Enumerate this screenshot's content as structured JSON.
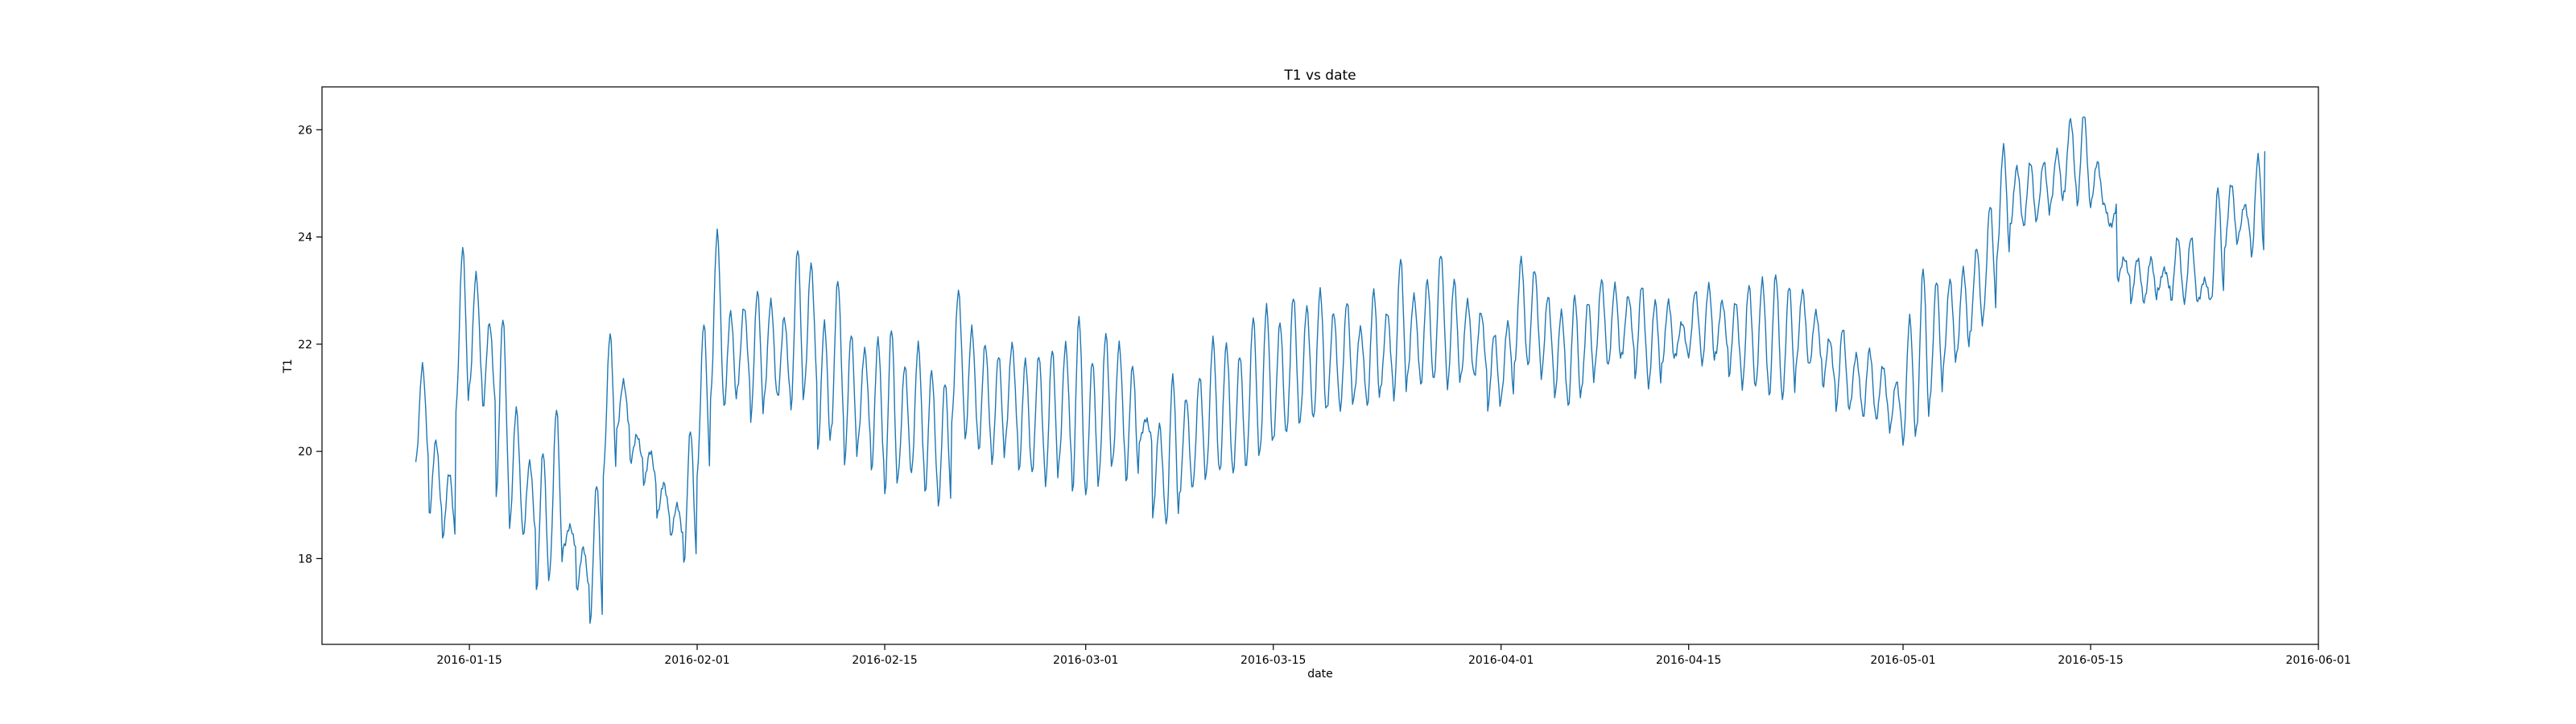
{
  "chart_data": {
    "type": "line",
    "title": "T1 vs date",
    "xlabel": "date",
    "ylabel": "T1",
    "xlim": [
      "2016-01-04",
      "2016-06-01"
    ],
    "ylim": [
      16.4,
      26.8
    ],
    "xticks": [
      "2016-01-15",
      "2016-02-01",
      "2016-02-15",
      "2016-03-01",
      "2016-03-15",
      "2016-04-01",
      "2016-04-15",
      "2016-05-01",
      "2016-05-15",
      "2016-06-01"
    ],
    "yticks": [
      18,
      20,
      22,
      24,
      26
    ],
    "grid": false,
    "legend": false,
    "line_color": "#1f77b4",
    "series": [
      {
        "x": [
          "2016-01-11",
          "2016-01-12",
          "2016-01-13",
          "2016-01-14",
          "2016-01-15",
          "2016-01-16",
          "2016-01-17",
          "2016-01-18",
          "2016-01-19",
          "2016-01-20",
          "2016-01-21",
          "2016-01-22",
          "2016-01-23",
          "2016-01-24",
          "2016-01-25",
          "2016-01-26",
          "2016-01-27",
          "2016-01-28",
          "2016-01-29",
          "2016-01-30",
          "2016-01-31",
          "2016-02-01",
          "2016-02-02",
          "2016-02-03",
          "2016-02-04",
          "2016-02-05",
          "2016-02-06",
          "2016-02-07",
          "2016-02-08",
          "2016-02-09",
          "2016-02-10",
          "2016-02-11",
          "2016-02-12",
          "2016-02-13",
          "2016-02-14",
          "2016-02-15",
          "2016-02-16",
          "2016-02-17",
          "2016-02-18",
          "2016-02-19",
          "2016-02-20",
          "2016-02-21",
          "2016-02-22",
          "2016-02-23",
          "2016-02-24",
          "2016-02-25",
          "2016-02-26",
          "2016-02-27",
          "2016-02-28",
          "2016-02-29",
          "2016-03-01",
          "2016-03-02",
          "2016-03-03",
          "2016-03-04",
          "2016-03-05",
          "2016-03-06",
          "2016-03-07",
          "2016-03-08",
          "2016-03-09",
          "2016-03-10",
          "2016-03-11",
          "2016-03-12",
          "2016-03-13",
          "2016-03-14",
          "2016-03-15",
          "2016-03-16",
          "2016-03-17",
          "2016-03-18",
          "2016-03-19",
          "2016-03-20",
          "2016-03-21",
          "2016-03-22",
          "2016-03-23",
          "2016-03-24",
          "2016-03-25",
          "2016-03-26",
          "2016-03-27",
          "2016-03-28",
          "2016-03-29",
          "2016-03-30",
          "2016-03-31",
          "2016-04-01",
          "2016-04-02",
          "2016-04-03",
          "2016-04-04",
          "2016-04-05",
          "2016-04-06",
          "2016-04-07",
          "2016-04-08",
          "2016-04-09",
          "2016-04-10",
          "2016-04-11",
          "2016-04-12",
          "2016-04-13",
          "2016-04-14",
          "2016-04-15",
          "2016-04-16",
          "2016-04-17",
          "2016-04-18",
          "2016-04-19",
          "2016-04-20",
          "2016-04-21",
          "2016-04-22",
          "2016-04-23",
          "2016-04-24",
          "2016-04-25",
          "2016-04-26",
          "2016-04-27",
          "2016-04-28",
          "2016-04-29",
          "2016-04-30",
          "2016-05-01",
          "2016-05-02",
          "2016-05-03",
          "2016-05-04",
          "2016-05-05",
          "2016-05-06",
          "2016-05-07",
          "2016-05-08",
          "2016-05-09",
          "2016-05-10",
          "2016-05-11",
          "2016-05-12",
          "2016-05-13",
          "2016-05-14",
          "2016-05-15",
          "2016-05-16",
          "2016-05-17",
          "2016-05-18",
          "2016-05-19",
          "2016-05-20",
          "2016-05-21",
          "2016-05-22",
          "2016-05-23",
          "2016-05-24",
          "2016-05-25",
          "2016-05-26",
          "2016-05-27"
        ],
        "daily_min": [
          19.8,
          18.8,
          18.4,
          20.8,
          21.2,
          20.8,
          19.2,
          18.6,
          18.4,
          17.4,
          17.8,
          18.2,
          17.4,
          16.8,
          19.6,
          20.4,
          19.8,
          19.4,
          18.8,
          18.4,
          17.9,
          19.6,
          21.0,
          20.8,
          21.2,
          20.6,
          21.0,
          21.0,
          20.8,
          21.2,
          20.0,
          20.4,
          19.8,
          20.2,
          19.6,
          19.2,
          19.6,
          19.6,
          19.2,
          19.0,
          20.6,
          20.2,
          20.0,
          19.8,
          20.2,
          19.6,
          19.6,
          19.4,
          19.8,
          19.2,
          19.2,
          19.6,
          19.8,
          19.4,
          20.2,
          18.8,
          18.6,
          19.2,
          19.4,
          19.6,
          19.6,
          19.6,
          19.8,
          20.0,
          20.2,
          20.4,
          20.6,
          20.6,
          20.8,
          20.8,
          21.0,
          20.8,
          21.2,
          21.0,
          21.4,
          21.2,
          21.4,
          21.2,
          21.4,
          21.4,
          20.8,
          21.0,
          21.6,
          21.6,
          21.4,
          21.0,
          20.8,
          21.2,
          21.6,
          21.6,
          21.8,
          21.4,
          21.2,
          21.6,
          21.8,
          21.8,
          21.6,
          21.8,
          21.4,
          21.2,
          21.2,
          21.0,
          21.0,
          21.6,
          21.6,
          21.2,
          20.8,
          20.8,
          20.6,
          20.6,
          20.4,
          20.1,
          20.4,
          21.0,
          21.6,
          21.8,
          22.2,
          22.6,
          23.6,
          24.2,
          24.2,
          24.4,
          24.6,
          24.8,
          24.6,
          24.6,
          24.6,
          23.2,
          22.8,
          22.8,
          23.0,
          22.8,
          22.8,
          22.8,
          22.8,
          23.8,
          24.0,
          23.6
        ],
        "daily_max": [
          21.6,
          20.2,
          19.6,
          23.8,
          23.3,
          22.4,
          22.5,
          20.8,
          19.8,
          20.0,
          20.8,
          18.6,
          18.2,
          19.4,
          22.2,
          21.3,
          20.3,
          20.0,
          19.4,
          19.0,
          20.4,
          22.4,
          24.1,
          22.6,
          22.7,
          23.0,
          22.8,
          22.5,
          23.8,
          23.5,
          22.4,
          23.2,
          22.2,
          21.9,
          22.1,
          22.3,
          21.6,
          22.0,
          21.5,
          21.3,
          23.0,
          22.3,
          22.0,
          21.8,
          22.0,
          21.7,
          21.8,
          21.9,
          22.0,
          22.5,
          21.7,
          22.2,
          22.0,
          21.6,
          20.6,
          20.5,
          21.4,
          21.0,
          21.4,
          22.1,
          22.0,
          21.8,
          22.5,
          22.7,
          22.4,
          22.9,
          22.7,
          23.0,
          22.6,
          22.8,
          22.3,
          23.0,
          22.6,
          23.6,
          22.9,
          23.2,
          23.7,
          23.2,
          22.8,
          22.6,
          22.2,
          22.4,
          23.6,
          23.4,
          22.9,
          22.6,
          22.9,
          22.8,
          23.2,
          23.1,
          22.9,
          23.1,
          22.8,
          22.8,
          22.4,
          23.0,
          23.1,
          22.8,
          22.8,
          23.1,
          23.2,
          23.3,
          23.1,
          23.0,
          22.6,
          22.1,
          22.3,
          21.8,
          21.9,
          21.6,
          21.3,
          22.5,
          23.4,
          23.2,
          23.2,
          23.4,
          23.8,
          24.6,
          25.7,
          25.3,
          25.4,
          25.4,
          25.6,
          26.2,
          26.3,
          25.4,
          24.2,
          23.6,
          23.6,
          23.6,
          23.4,
          24.0,
          24.0,
          23.2,
          24.9,
          25.0,
          24.6,
          25.5
        ],
        "final_value": 25.6
      }
    ]
  }
}
